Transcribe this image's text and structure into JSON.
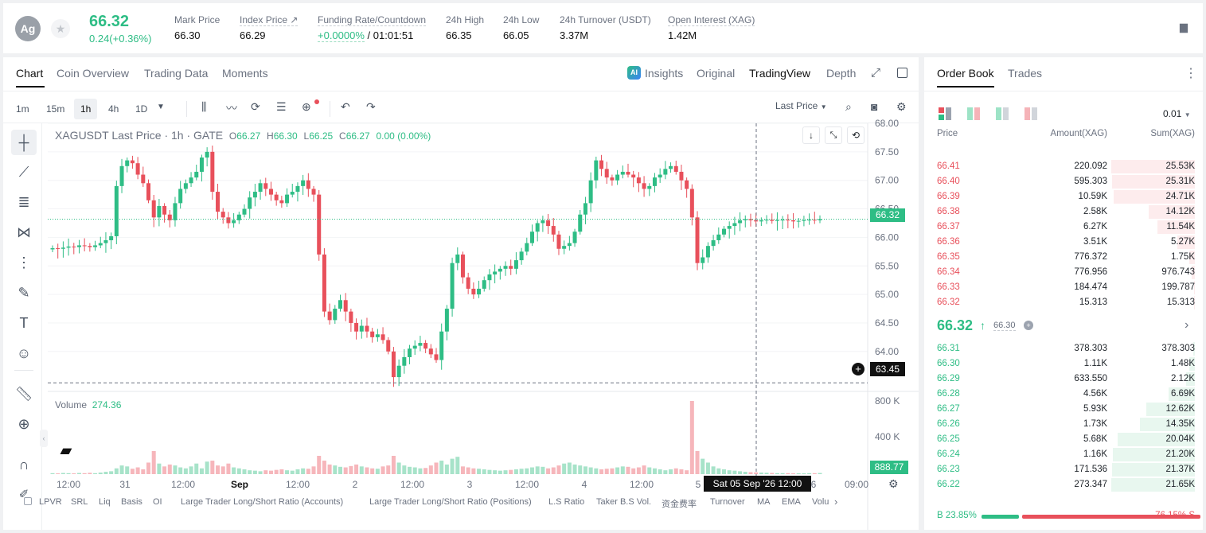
{
  "ticker": {
    "avatar": "Ag",
    "price": "66.32",
    "change": "0.24(+0.36%)",
    "stats": [
      {
        "label": "Mark Price",
        "value": "66.30"
      },
      {
        "label": "Index Price ↗",
        "value": "66.29"
      },
      {
        "label": "Funding Rate/Countdown",
        "value_green": "+0.0000%",
        "value": "/ 01:01:51"
      },
      {
        "label": "24h High",
        "value": "66.35"
      },
      {
        "label": "24h Low",
        "value": "66.05"
      },
      {
        "label": "24h Turnover (USDT)",
        "value": "3.37M"
      },
      {
        "label": "Open Interest (XAG)",
        "value": "1.42M"
      }
    ]
  },
  "chart_tabs": [
    "Chart",
    "Coin Overview",
    "Trading Data",
    "Moments"
  ],
  "view_tabs": {
    "insights": "Insights",
    "original": "Original",
    "tradingview": "TradingView",
    "depth": "Depth"
  },
  "timeframes": [
    "1m",
    "15m",
    "1h",
    "4h",
    "1D"
  ],
  "active_timeframe": "1h",
  "price_mode": "Last Price",
  "legend": {
    "symbol": "XAGUSDT Last Price · 1h · GATE",
    "o_label": "O",
    "o": "66.27",
    "h_label": "H",
    "h": "66.30",
    "l_label": "L",
    "l": "66.25",
    "c_label": "C",
    "c": "66.27",
    "chg": "0.00 (0.00%)"
  },
  "volume_legend": {
    "label": "Volume",
    "value": "274.36"
  },
  "chart_data": {
    "type": "candlestick",
    "ylim": [
      63.3,
      68.0
    ],
    "y_ticks": [
      "68.00",
      "67.50",
      "67.00",
      "66.50",
      "66.00",
      "65.50",
      "65.00",
      "64.50",
      "64.00"
    ],
    "volume_ticks": [
      "800 K",
      "400 K"
    ],
    "x_ticks": [
      "12:00",
      "31",
      "12:00",
      "Sep",
      "12:00",
      "2",
      "12:00",
      "3",
      "12:00",
      "4",
      "12:00",
      "5",
      "6",
      "09:00"
    ],
    "last_price_tag": "66.32",
    "crosshair_price_tag": "63.45",
    "crosshair_time_tag": "Sat 05 Sep '26    12:00",
    "volume_tag": "888.77",
    "candles_close": [
      65.81,
      65.8,
      65.82,
      65.84,
      65.83,
      65.86,
      65.85,
      65.83,
      65.86,
      65.9,
      65.95,
      66.02,
      66.9,
      67.25,
      67.35,
      67.3,
      67.1,
      66.95,
      66.65,
      66.35,
      66.55,
      66.4,
      66.3,
      66.6,
      66.85,
      66.95,
      67.05,
      67.15,
      67.4,
      67.5,
      66.8,
      66.45,
      66.35,
      66.25,
      66.3,
      66.4,
      66.5,
      66.7,
      66.8,
      66.95,
      66.85,
      66.75,
      66.65,
      66.6,
      66.75,
      66.8,
      66.9,
      67.0,
      66.85,
      66.75,
      65.7,
      64.7,
      64.55,
      64.75,
      64.9,
      64.7,
      64.5,
      64.35,
      64.45,
      64.35,
      64.25,
      64.3,
      64.2,
      64.0,
      63.55,
      63.75,
      63.9,
      64.05,
      64.1,
      64.15,
      64.05,
      63.95,
      63.85,
      64.35,
      64.75,
      65.55,
      65.7,
      65.3,
      65.1,
      65.0,
      65.1,
      65.25,
      65.35,
      65.4,
      65.45,
      65.5,
      65.45,
      65.6,
      65.75,
      65.9,
      66.1,
      66.25,
      66.3,
      66.2,
      66.05,
      65.8,
      65.85,
      65.9,
      66.1,
      66.4,
      66.6,
      67.0,
      67.35,
      67.2,
      67.05,
      67.0,
      67.1,
      67.15,
      67.1,
      67.05,
      66.95,
      66.85,
      66.9,
      67.05,
      67.1,
      67.2,
      67.25,
      67.15,
      67.0,
      66.85,
      66.35,
      65.55,
      65.65,
      65.85,
      65.95,
      66.05,
      66.15,
      66.2,
      66.25,
      66.3,
      66.32,
      66.3,
      66.28,
      66.3,
      66.31,
      66.29,
      66.3,
      66.31,
      66.3,
      66.28,
      66.29,
      66.3,
      66.31,
      66.3,
      66.32
    ],
    "volume": [
      5,
      4,
      6,
      5,
      4,
      6,
      5,
      7,
      5,
      8,
      12,
      15,
      30,
      45,
      40,
      28,
      35,
      25,
      60,
      120,
      55,
      40,
      50,
      45,
      35,
      30,
      40,
      55,
      30,
      65,
      70,
      45,
      40,
      55,
      35,
      30,
      25,
      20,
      18,
      15,
      20,
      18,
      22,
      25,
      20,
      18,
      25,
      30,
      28,
      40,
      95,
      70,
      50,
      45,
      38,
      35,
      42,
      50,
      40,
      35,
      30,
      28,
      40,
      45,
      95,
      60,
      45,
      38,
      35,
      30,
      32,
      45,
      60,
      70,
      50,
      80,
      90,
      40,
      35,
      30,
      28,
      25,
      22,
      20,
      18,
      20,
      22,
      25,
      28,
      30,
      35,
      40,
      38,
      30,
      35,
      45,
      55,
      60,
      50,
      45,
      40,
      35,
      30,
      25,
      28,
      30,
      35,
      40,
      38,
      30,
      35,
      45,
      35,
      30,
      25,
      20,
      25,
      30,
      25,
      20,
      380,
      120,
      80,
      60,
      40,
      30,
      25,
      20,
      18,
      15,
      12,
      10,
      9,
      8,
      7,
      6,
      5,
      5,
      5,
      4,
      4,
      4,
      5,
      5,
      6
    ]
  },
  "indicators": [
    "LPVR",
    "SRL",
    "Liq",
    "Basis",
    "OI",
    "Large Trader Long/Short Ratio (Accounts)",
    "Large Trader Long/Short Ratio (Positions)",
    "L.S Ratio",
    "Taker B.S Vol.",
    "资金费率",
    "Turnover",
    "MA",
    "EMA",
    "Volu"
  ],
  "orderbook": {
    "tabs": [
      "Order Book",
      "Trades"
    ],
    "precision": "0.01",
    "headers": {
      "price": "Price",
      "amount": "Amount(XAG)",
      "sum": "Sum(XAG)"
    },
    "asks": [
      {
        "price": "66.41",
        "amount": "220.092",
        "sum": "25.53K",
        "depth": 1.0
      },
      {
        "price": "66.40",
        "amount": "595.303",
        "sum": "25.31K",
        "depth": 0.99
      },
      {
        "price": "66.39",
        "amount": "10.59K",
        "sum": "24.71K",
        "depth": 0.97
      },
      {
        "price": "66.38",
        "amount": "2.58K",
        "sum": "14.12K",
        "depth": 0.55
      },
      {
        "price": "66.37",
        "amount": "6.27K",
        "sum": "11.54K",
        "depth": 0.45
      },
      {
        "price": "66.36",
        "amount": "3.51K",
        "sum": "5.27K",
        "depth": 0.21
      },
      {
        "price": "66.35",
        "amount": "776.372",
        "sum": "1.75K",
        "depth": 0.07
      },
      {
        "price": "66.34",
        "amount": "776.956",
        "sum": "976.743",
        "depth": 0.04
      },
      {
        "price": "66.33",
        "amount": "184.474",
        "sum": "199.787",
        "depth": 0.01
      },
      {
        "price": "66.32",
        "amount": "15.313",
        "sum": "15.313",
        "depth": 0.005
      }
    ],
    "mid_price": "66.32",
    "mid_mark": "66.30",
    "bids": [
      {
        "price": "66.31",
        "amount": "378.303",
        "sum": "378.303",
        "depth": 0.02
      },
      {
        "price": "66.30",
        "amount": "1.11K",
        "sum": "1.48K",
        "depth": 0.07
      },
      {
        "price": "66.29",
        "amount": "633.550",
        "sum": "2.12K",
        "depth": 0.1
      },
      {
        "price": "66.28",
        "amount": "4.56K",
        "sum": "6.69K",
        "depth": 0.31
      },
      {
        "price": "66.27",
        "amount": "5.93K",
        "sum": "12.62K",
        "depth": 0.58
      },
      {
        "price": "66.26",
        "amount": "1.73K",
        "sum": "14.35K",
        "depth": 0.66
      },
      {
        "price": "66.25",
        "amount": "5.68K",
        "sum": "20.04K",
        "depth": 0.92
      },
      {
        "price": "66.24",
        "amount": "1.16K",
        "sum": "21.20K",
        "depth": 0.98
      },
      {
        "price": "66.23",
        "amount": "171.536",
        "sum": "21.37K",
        "depth": 0.99
      },
      {
        "price": "66.22",
        "amount": "273.347",
        "sum": "21.65K",
        "depth": 1.0
      }
    ],
    "buy_label": "B",
    "buy_pct": "23.85%",
    "buy_ratio": 0.2385,
    "sell_pct": "76.15%",
    "sell_label": "S"
  },
  "colors": {
    "up": "#2ebd85",
    "down": "#e8505b",
    "text": "#1e2329",
    "muted": "#6b7280"
  }
}
